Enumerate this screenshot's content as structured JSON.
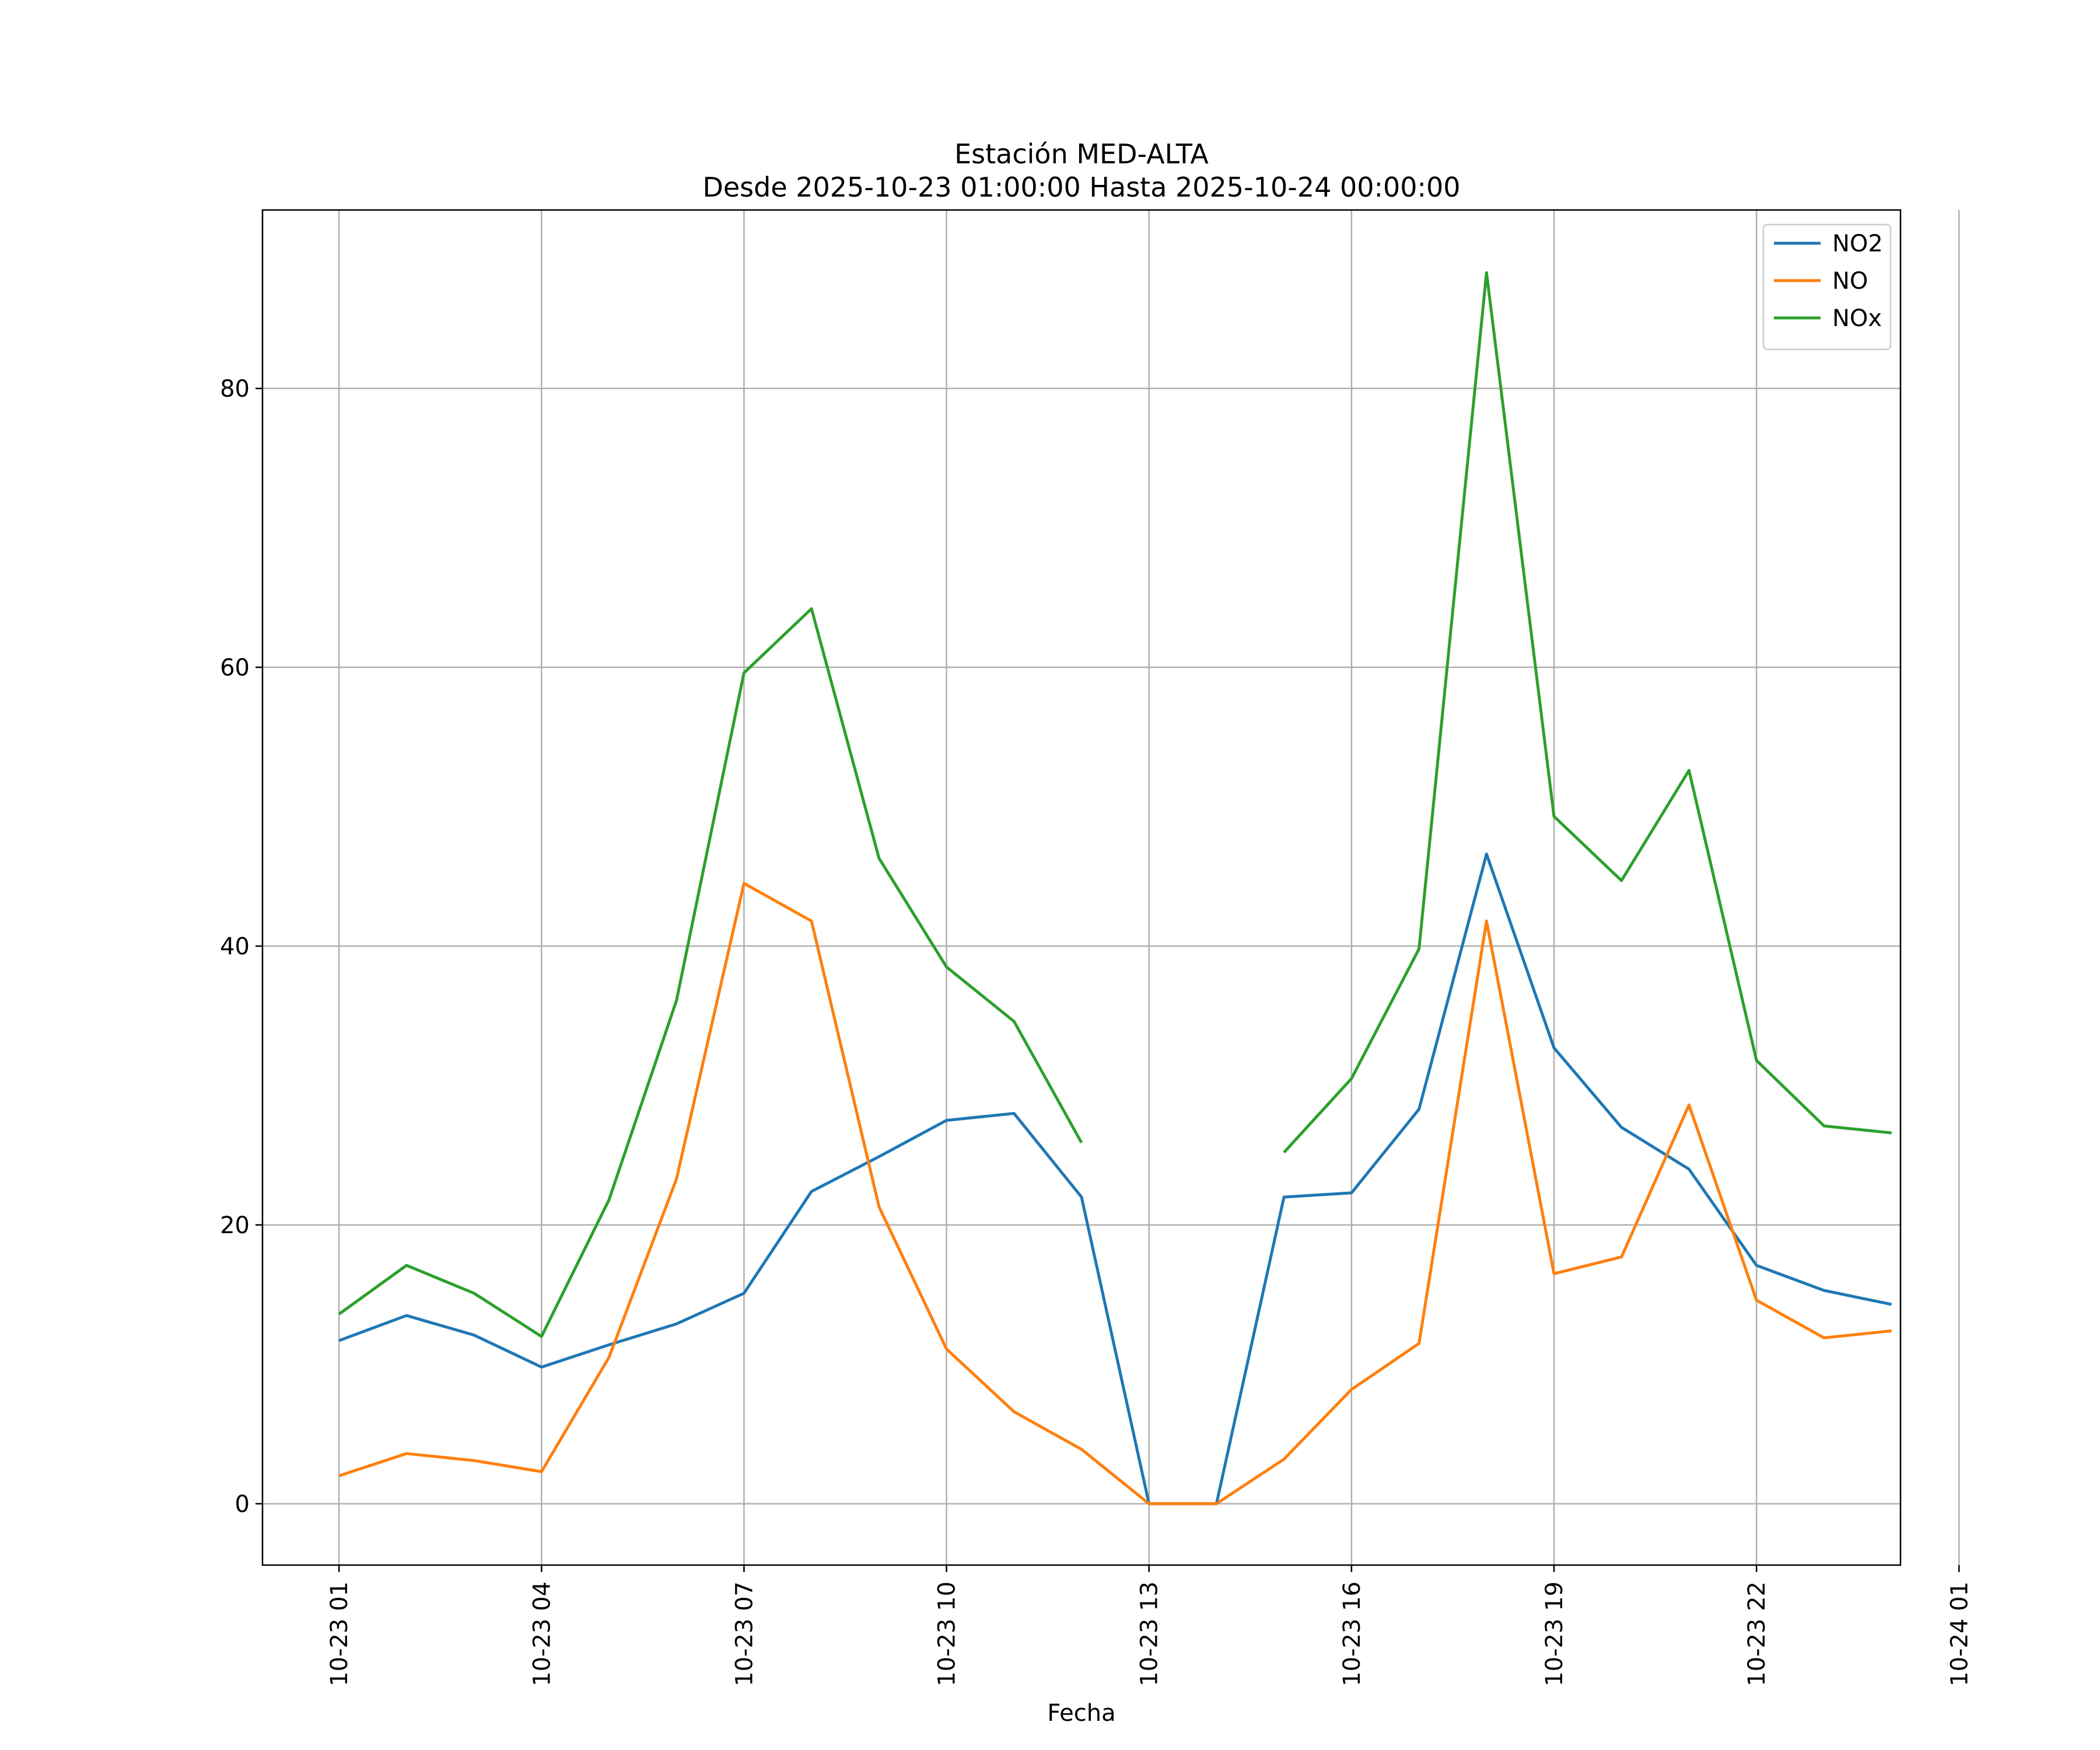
{
  "chart_data": {
    "type": "line",
    "title": "Estación MED-ALTA",
    "subtitle": "Desde 2025-10-23 01:00:00 Hasta 2025-10-24 00:00:00",
    "xlabel": "Fecha",
    "ylabel": "",
    "x": [
      "10-23 01",
      "10-23 02",
      "10-23 03",
      "10-23 04",
      "10-23 05",
      "10-23 06",
      "10-23 07",
      "10-23 08",
      "10-23 09",
      "10-23 10",
      "10-23 11",
      "10-23 12",
      "10-23 13",
      "10-23 14",
      "10-23 15",
      "10-23 16",
      "10-23 17",
      "10-23 18",
      "10-23 19",
      "10-23 20",
      "10-23 21",
      "10-23 22",
      "10-23 23",
      "10-24 00"
    ],
    "xlim": [
      "10-22 23:52",
      "10-24 00:08"
    ],
    "xtick_labels": [
      "10-23 01",
      "10-23 04",
      "10-23 07",
      "10-23 10",
      "10-23 13",
      "10-23 16",
      "10-23 19",
      "10-23 22",
      "10-24 01"
    ],
    "ylim": [
      -4.4,
      92.8
    ],
    "ytick_labels": [
      "0",
      "20",
      "40",
      "60",
      "80"
    ],
    "grid": true,
    "legend": "top-right",
    "series": [
      {
        "name": "NO2",
        "color": "#1f77b4",
        "values": [
          11.7,
          13.5,
          12.1,
          9.8,
          11.4,
          12.9,
          15.1,
          22.4,
          24.9,
          27.5,
          28.0,
          22.0,
          0,
          0,
          22.0,
          22.3,
          28.3,
          46.6,
          32.7,
          27.0,
          24.0,
          17.1,
          15.3,
          14.3
        ]
      },
      {
        "name": "NO",
        "color": "#ff7f0e",
        "values": [
          2.0,
          3.6,
          3.1,
          2.3,
          10.5,
          23.3,
          44.5,
          41.8,
          21.3,
          11.1,
          6.6,
          3.9,
          0,
          0,
          3.2,
          8.2,
          11.5,
          41.8,
          16.5,
          17.7,
          28.6,
          14.6,
          11.9,
          12.4
        ]
      },
      {
        "name": "NOx",
        "color": "#2ca02c",
        "values": [
          13.6,
          17.1,
          15.1,
          12.0,
          21.8,
          36.1,
          59.6,
          64.2,
          46.3,
          38.5,
          34.6,
          25.9,
          null,
          null,
          25.2,
          30.5,
          39.8,
          88.3,
          49.3,
          44.7,
          52.6,
          31.8,
          27.1,
          26.6
        ]
      }
    ]
  }
}
